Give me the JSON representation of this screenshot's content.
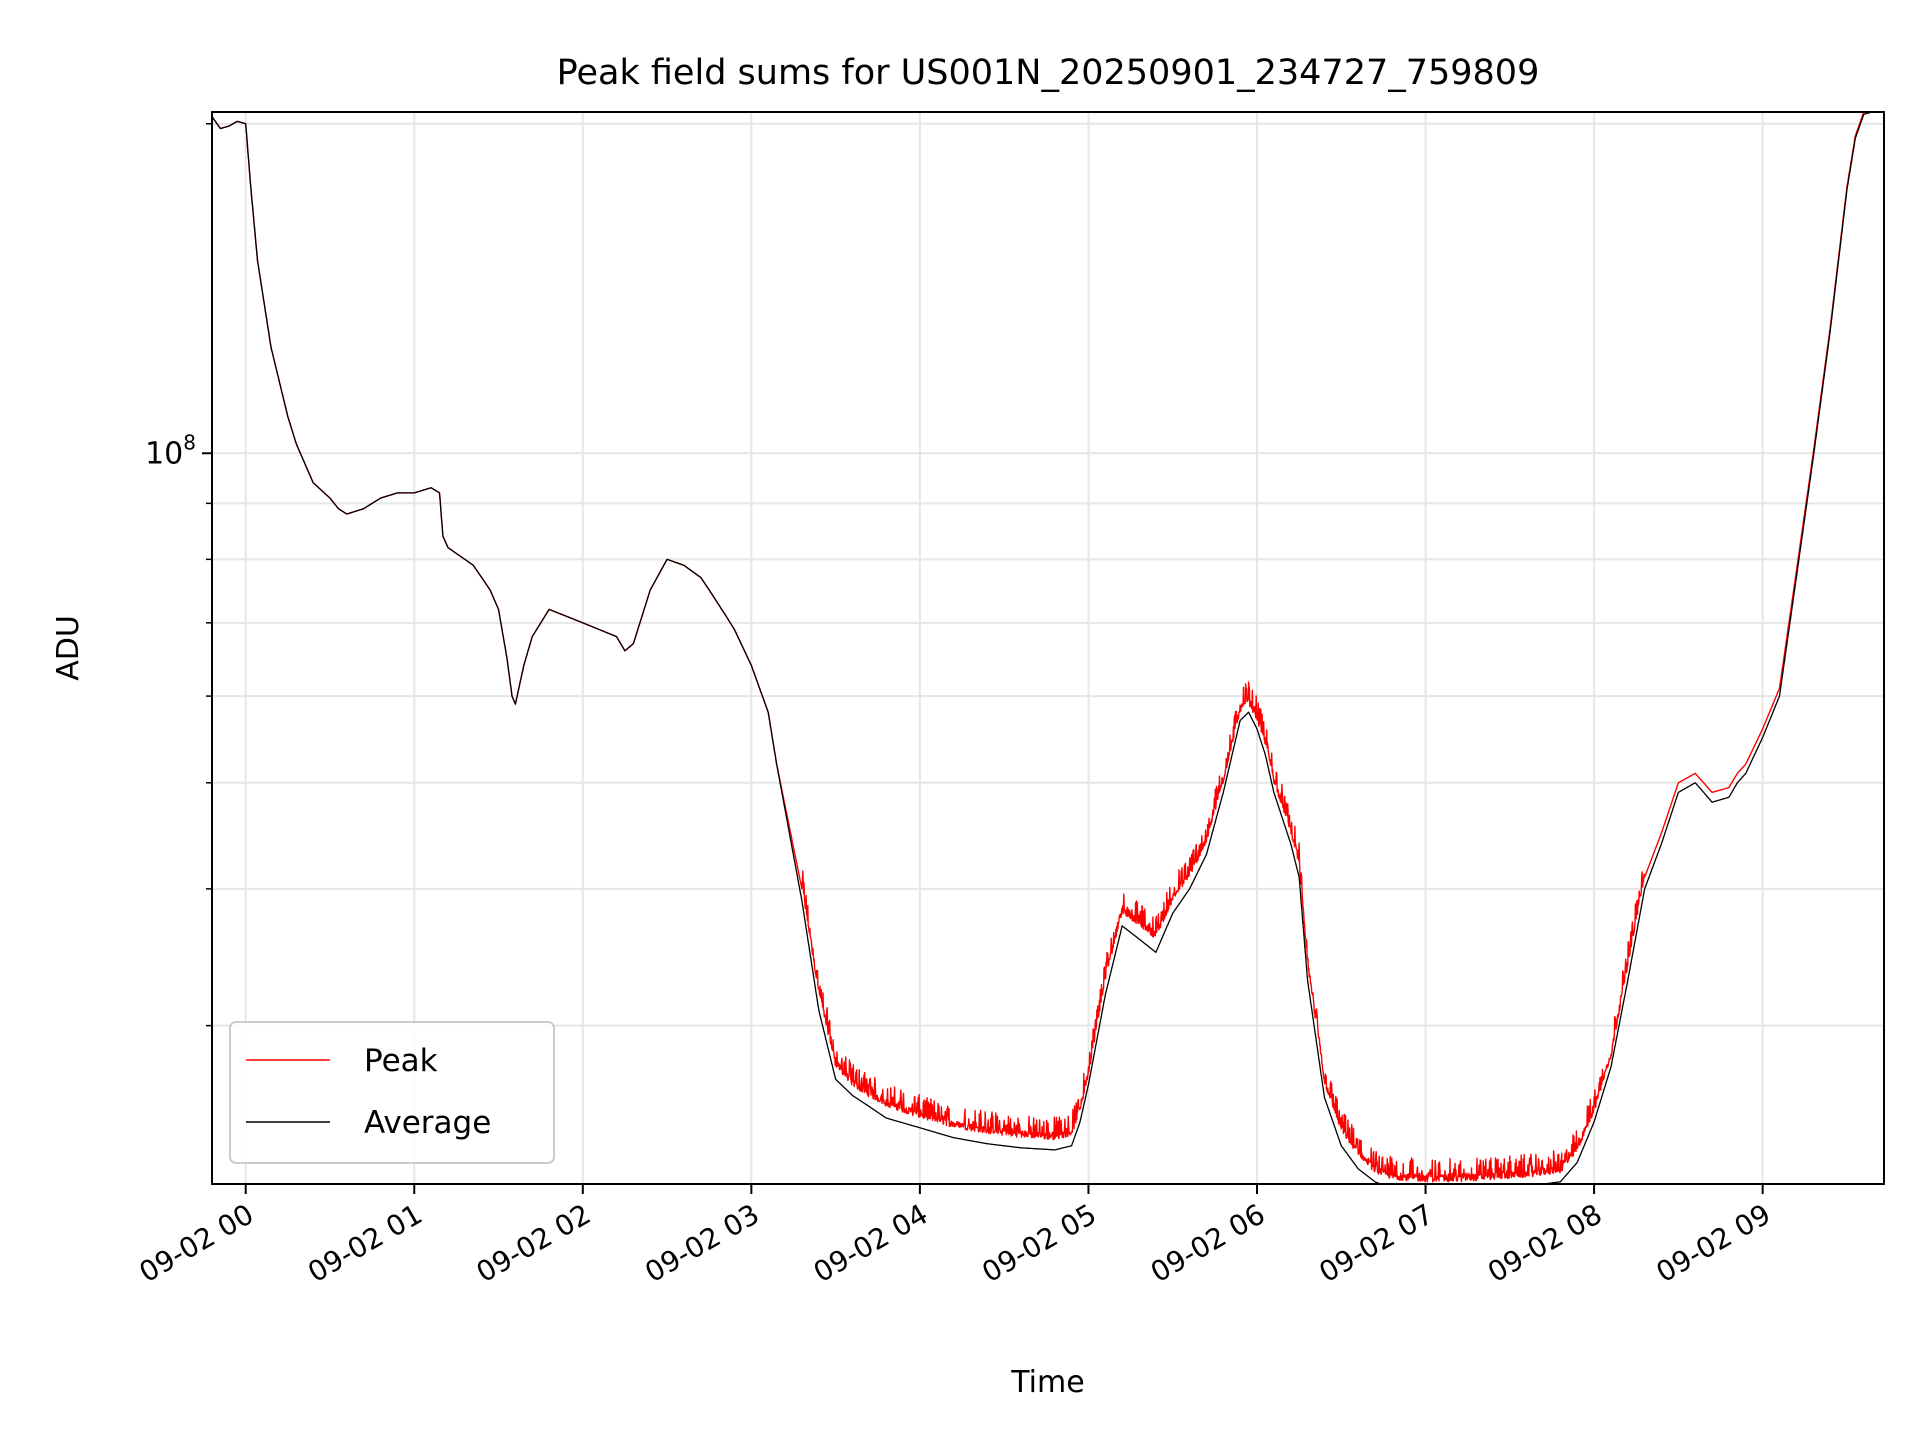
{
  "chart_data": {
    "type": "line",
    "title": "Peak field sums for US001N_20250901_234727_759809",
    "xlabel": "Time",
    "ylabel": "ADU",
    "x_unit": "hours",
    "xlim": [
      -0.2,
      9.72
    ],
    "ylim": [
      21500000,
      205000000
    ],
    "y_scale": "log",
    "grid": true,
    "legend_position": "lower-left",
    "x_ticks": [
      {
        "value": 0,
        "label": "09-02 00"
      },
      {
        "value": 1,
        "label": "09-02 01"
      },
      {
        "value": 2,
        "label": "09-02 02"
      },
      {
        "value": 3,
        "label": "09-02 03"
      },
      {
        "value": 4,
        "label": "09-02 04"
      },
      {
        "value": 5,
        "label": "09-02 05"
      },
      {
        "value": 6,
        "label": "09-02 06"
      },
      {
        "value": 7,
        "label": "09-02 07"
      },
      {
        "value": 8,
        "label": "09-02 08"
      },
      {
        "value": 9,
        "label": "09-02 09"
      }
    ],
    "y_major_ticks": [
      {
        "value": 100000000,
        "label_base": "10",
        "label_exp": "8"
      }
    ],
    "y_minor_ticks": [
      30000000,
      40000000,
      50000000,
      60000000,
      70000000,
      80000000,
      90000000,
      200000000
    ],
    "series": [
      {
        "name": "Peak",
        "color": "#ff0000",
        "noise": 0.05,
        "x": [
          -0.2,
          -0.15,
          -0.1,
          -0.05,
          0.0,
          0.03,
          0.07,
          0.15,
          0.25,
          0.3,
          0.4,
          0.5,
          0.55,
          0.6,
          0.7,
          0.8,
          0.9,
          1.0,
          1.1,
          1.15,
          1.17,
          1.2,
          1.3,
          1.35,
          1.4,
          1.45,
          1.5,
          1.55,
          1.58,
          1.6,
          1.65,
          1.7,
          1.8,
          1.9,
          2.0,
          2.2,
          2.25,
          2.3,
          2.4,
          2.5,
          2.6,
          2.7,
          2.75,
          2.85,
          2.9,
          3.0,
          3.1,
          3.15,
          3.3,
          3.4,
          3.5,
          3.6,
          3.7,
          3.8,
          4.0,
          4.2,
          4.4,
          4.6,
          4.8,
          4.9,
          4.95,
          5.0,
          5.1,
          5.2,
          5.3,
          5.4,
          5.5,
          5.6,
          5.7,
          5.8,
          5.9,
          5.95,
          6.0,
          6.05,
          6.1,
          6.2,
          6.25,
          6.3,
          6.4,
          6.5,
          6.6,
          6.7,
          6.8,
          7.0,
          7.2,
          7.4,
          7.6,
          7.8,
          7.9,
          8.0,
          8.1,
          8.2,
          8.3,
          8.4,
          8.5,
          8.6,
          8.65,
          8.7,
          8.8,
          8.85,
          8.9,
          9.0,
          9.1,
          9.2,
          9.3,
          9.4,
          9.5,
          9.55,
          9.6,
          9.7
        ],
        "y": [
          203000000,
          198000000,
          199000000,
          201000000,
          200000000,
          175000000,
          150000000,
          125000000,
          108000000,
          102000000,
          94000000,
          91000000,
          89000000,
          88000000,
          89000000,
          91000000,
          92000000,
          92000000,
          93000000,
          92000000,
          84000000,
          82000000,
          80000000,
          79000000,
          77000000,
          75000000,
          72000000,
          65000000,
          60000000,
          59000000,
          64000000,
          68000000,
          72000000,
          71000000,
          70000000,
          68000000,
          66000000,
          67000000,
          75000000,
          80000000,
          79000000,
          77000000,
          75000000,
          71000000,
          69000000,
          64000000,
          58000000,
          52000000,
          40000000,
          32000000,
          27500000,
          26400000,
          25800000,
          25300000,
          24700000,
          24200000,
          23900000,
          23700000,
          23600000,
          23800000,
          25000000,
          27000000,
          33000000,
          38000000,
          37000000,
          36000000,
          39000000,
          41000000,
          44000000,
          50000000,
          58000000,
          59000000,
          57000000,
          54000000,
          50000000,
          45000000,
          42000000,
          34000000,
          26500000,
          24000000,
          22800000,
          22000000,
          21700000,
          21600000,
          21600000,
          21700000,
          21800000,
          22000000,
          23000000,
          25000000,
          28000000,
          34000000,
          41000000,
          45000000,
          50000000,
          51000000,
          50000000,
          49000000,
          49500000,
          51000000,
          52000000,
          56000000,
          61000000,
          78000000,
          100000000,
          130000000,
          175000000,
          195000000,
          205000000,
          207000000
        ]
      },
      {
        "name": "Average",
        "color": "#000000",
        "noise": 0,
        "x": [
          -0.2,
          -0.15,
          -0.1,
          -0.05,
          0.0,
          0.03,
          0.07,
          0.15,
          0.25,
          0.3,
          0.4,
          0.5,
          0.55,
          0.6,
          0.7,
          0.8,
          0.9,
          1.0,
          1.1,
          1.15,
          1.17,
          1.2,
          1.3,
          1.35,
          1.4,
          1.45,
          1.5,
          1.55,
          1.58,
          1.6,
          1.65,
          1.7,
          1.8,
          1.9,
          2.0,
          2.2,
          2.25,
          2.3,
          2.4,
          2.5,
          2.6,
          2.7,
          2.75,
          2.85,
          2.9,
          3.0,
          3.1,
          3.15,
          3.3,
          3.4,
          3.5,
          3.6,
          3.7,
          3.8,
          4.0,
          4.2,
          4.4,
          4.6,
          4.8,
          4.9,
          4.95,
          5.0,
          5.1,
          5.2,
          5.3,
          5.4,
          5.5,
          5.6,
          5.7,
          5.8,
          5.9,
          5.95,
          6.0,
          6.05,
          6.1,
          6.2,
          6.25,
          6.3,
          6.4,
          6.5,
          6.6,
          6.7,
          6.8,
          7.0,
          7.2,
          7.4,
          7.6,
          7.8,
          7.9,
          8.0,
          8.1,
          8.2,
          8.3,
          8.4,
          8.5,
          8.6,
          8.65,
          8.7,
          8.8,
          8.85,
          8.9,
          9.0,
          9.1,
          9.2,
          9.3,
          9.4,
          9.5,
          9.55,
          9.6,
          9.7
        ],
        "y": [
          203000000,
          198000000,
          199000000,
          201000000,
          200000000,
          175000000,
          150000000,
          125000000,
          108000000,
          102000000,
          94000000,
          91000000,
          89000000,
          88000000,
          89000000,
          91000000,
          92000000,
          92000000,
          93000000,
          92000000,
          84000000,
          82000000,
          80000000,
          79000000,
          77000000,
          75000000,
          72000000,
          65000000,
          60000000,
          59000000,
          64000000,
          68000000,
          72000000,
          71000000,
          70000000,
          68000000,
          66000000,
          67000000,
          75000000,
          80000000,
          79000000,
          77000000,
          75000000,
          71000000,
          69000000,
          64000000,
          58000000,
          52000000,
          39000000,
          31000000,
          26800000,
          25900000,
          25300000,
          24700000,
          24200000,
          23700000,
          23400000,
          23200000,
          23100000,
          23300000,
          24500000,
          26500000,
          32000000,
          37000000,
          36000000,
          35000000,
          38000000,
          40000000,
          43000000,
          49000000,
          57000000,
          58000000,
          56000000,
          53000000,
          49000000,
          44000000,
          41000000,
          33000000,
          25800000,
          23300000,
          22200000,
          21600000,
          21300000,
          21200000,
          21200000,
          21300000,
          21400000,
          21600000,
          22500000,
          24500000,
          27500000,
          33000000,
          40000000,
          44000000,
          49000000,
          50000000,
          49000000,
          48000000,
          48500000,
          50000000,
          51000000,
          55000000,
          60000000,
          77000000,
          99000000,
          129000000,
          174000000,
          194000000,
          204000000,
          206000000
        ]
      }
    ]
  }
}
